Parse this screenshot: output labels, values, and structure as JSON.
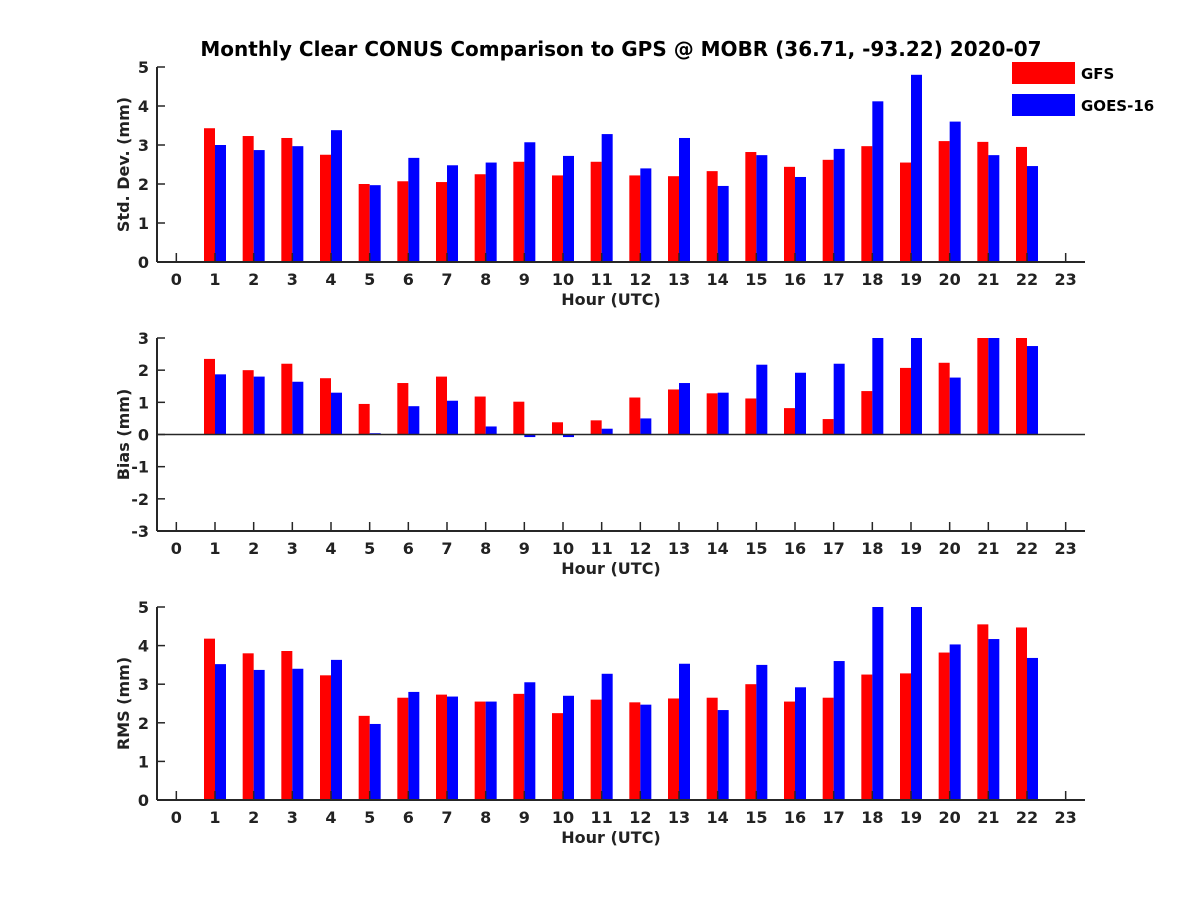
{
  "chart_data": {
    "title": "Monthly Clear CONUS Comparison to GPS @ MOBR (36.71, -93.22) 2020-07",
    "legend": {
      "placement": "top-right",
      "entries": [
        {
          "name": "GFS",
          "color": "#ff0000"
        },
        {
          "name": "GOES-16",
          "color": "#0000ff"
        }
      ]
    },
    "x": [
      0,
      1,
      2,
      3,
      4,
      5,
      6,
      7,
      8,
      9,
      10,
      11,
      12,
      13,
      14,
      15,
      16,
      17,
      18,
      19,
      20,
      21,
      22,
      23
    ],
    "xlim": [
      -0.5,
      23.5
    ],
    "panels": [
      {
        "type": "bar",
        "ylabel": "Std. Dev. (mm)",
        "xlabel": "Hour (UTC)",
        "ylim": [
          0,
          5
        ],
        "yticks": [
          0,
          1,
          2,
          3,
          4,
          5
        ],
        "series": [
          {
            "name": "GFS",
            "color": "#ff0000",
            "values": [
              null,
              3.43,
              3.23,
              3.18,
              2.75,
              2.0,
              2.07,
              2.05,
              2.25,
              2.57,
              2.22,
              2.57,
              2.22,
              2.2,
              2.33,
              2.82,
              2.44,
              2.62,
              2.97,
              2.55,
              3.1,
              3.08,
              2.95,
              null
            ]
          },
          {
            "name": "GOES-16",
            "color": "#0000ff",
            "values": [
              null,
              3.0,
              2.87,
              2.97,
              3.38,
              1.97,
              2.67,
              2.48,
              2.55,
              3.07,
              2.72,
              3.28,
              2.4,
              3.18,
              1.95,
              2.74,
              2.18,
              2.9,
              4.12,
              4.8,
              3.6,
              2.74,
              2.46,
              null
            ]
          }
        ]
      },
      {
        "type": "bar",
        "ylabel": "Bias (mm)",
        "xlabel": "Hour (UTC)",
        "ylim": [
          -3,
          3
        ],
        "yticks": [
          -3,
          -2,
          -1,
          0,
          1,
          2,
          3
        ],
        "series": [
          {
            "name": "GFS",
            "color": "#ff0000",
            "values": [
              null,
              2.35,
              2.0,
              2.2,
              1.75,
              0.95,
              1.6,
              1.8,
              1.18,
              1.02,
              0.38,
              0.44,
              1.15,
              1.4,
              1.28,
              1.12,
              0.82,
              0.48,
              1.35,
              2.07,
              2.23,
              3.0,
              3.0,
              null
            ]
          },
          {
            "name": "GOES-16",
            "color": "#0000ff",
            "values": [
              null,
              1.87,
              1.8,
              1.64,
              1.3,
              0.04,
              0.88,
              1.05,
              0.25,
              -0.08,
              -0.08,
              0.18,
              0.5,
              1.6,
              1.3,
              2.17,
              1.92,
              2.2,
              3.0,
              3.0,
              1.77,
              3.0,
              2.75,
              null
            ]
          }
        ]
      },
      {
        "type": "bar",
        "ylabel": "RMS (mm)",
        "xlabel": "Hour (UTC)",
        "ylim": [
          0,
          5
        ],
        "yticks": [
          0,
          1,
          2,
          3,
          4,
          5
        ],
        "series": [
          {
            "name": "GFS",
            "color": "#ff0000",
            "values": [
              null,
              4.18,
              3.8,
              3.86,
              3.23,
              2.18,
              2.65,
              2.73,
              2.55,
              2.75,
              2.25,
              2.6,
              2.53,
              2.63,
              2.65,
              3.0,
              2.55,
              2.65,
              3.25,
              3.28,
              3.82,
              4.55,
              4.47,
              null
            ]
          },
          {
            "name": "GOES-16",
            "color": "#0000ff",
            "values": [
              null,
              3.52,
              3.37,
              3.4,
              3.63,
              1.97,
              2.8,
              2.68,
              2.55,
              3.05,
              2.7,
              3.27,
              2.47,
              3.53,
              2.33,
              3.5,
              2.92,
              3.6,
              5.0,
              5.0,
              4.03,
              4.17,
              3.68,
              null
            ]
          }
        ]
      }
    ]
  }
}
